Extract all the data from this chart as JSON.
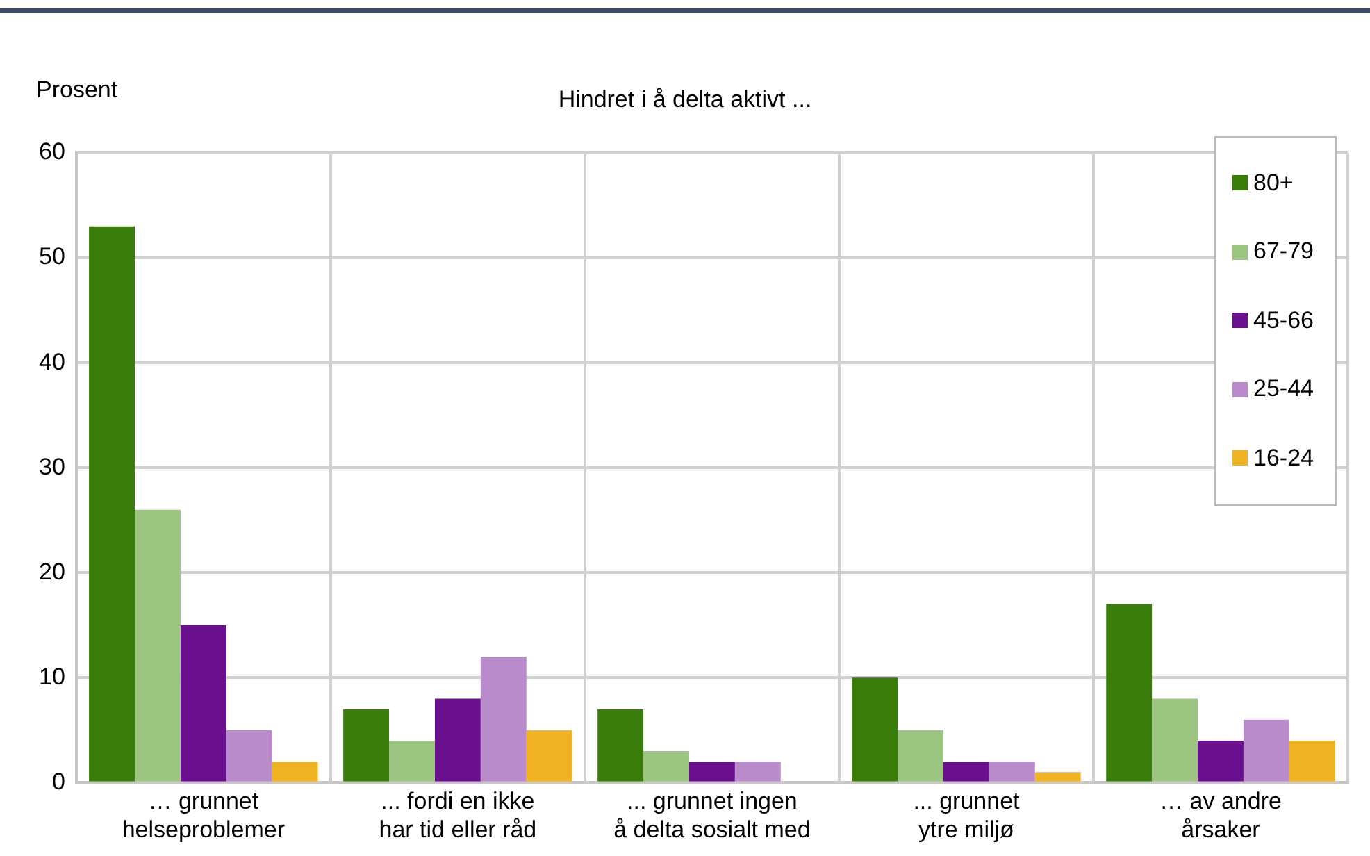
{
  "chart_data": {
    "type": "bar",
    "title": "Hindret i å delta aktivt ...",
    "ylabel": "Prosent",
    "categories": [
      "… grunnet helseproblemer",
      "... fordi en ikke har tid eller råd",
      "... grunnet ingen å delta sosialt med",
      "... grunnet ytre miljø",
      "… av andre årsaker"
    ],
    "series": [
      {
        "name": "80+",
        "color": "#3a7d0a",
        "values": [
          53,
          7,
          7,
          10,
          17
        ]
      },
      {
        "name": "67-79",
        "color": "#9dc582",
        "values": [
          26,
          4,
          3,
          5,
          8
        ]
      },
      {
        "name": "45-66",
        "color": "#6a0f8e",
        "values": [
          15,
          8,
          2,
          2,
          4
        ]
      },
      {
        "name": "25-44",
        "color": "#b98bcb",
        "values": [
          5,
          12,
          2,
          2,
          6
        ]
      },
      {
        "name": "16-24",
        "color": "#f0b323",
        "values": [
          2,
          5,
          0,
          1,
          4
        ]
      }
    ],
    "ylim": [
      0,
      60
    ],
    "yticks": [
      0,
      10,
      20,
      30,
      40,
      50,
      60
    ],
    "grid": true,
    "legend": "top right"
  }
}
